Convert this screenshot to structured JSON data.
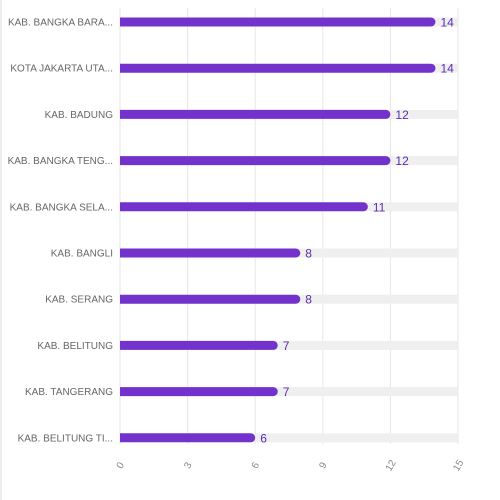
{
  "chart_data": {
    "type": "bar",
    "orientation": "horizontal",
    "title": "",
    "xlabel": "",
    "ylabel": "",
    "categories": [
      "KAB. BANGKA BARA...",
      "KOTA JAKARTA UTA...",
      "KAB. BADUNG",
      "KAB. BANGKA TENG...",
      "KAB. BANGKA SELA...",
      "KAB. BANGLI",
      "KAB. SERANG",
      "KAB. BELITUNG",
      "KAB. TANGERANG",
      "KAB. BELITUNG TI..."
    ],
    "values": [
      14,
      14,
      12,
      12,
      11,
      8,
      8,
      7,
      7,
      6
    ],
    "xlim": [
      0,
      15
    ],
    "xticks": [
      "0",
      "3",
      "6",
      "9",
      "12",
      "15"
    ],
    "grid": true,
    "legend": "none",
    "colors": {
      "bar": "#7432cc",
      "track": "#efefef",
      "grid": "#e6e6e6",
      "value_text": "#5b2bb5"
    }
  }
}
